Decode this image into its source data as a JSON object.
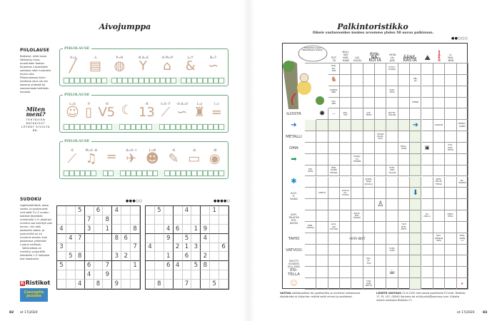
{
  "left_page": {
    "title": "Aivojumppa",
    "piilolause": {
      "heading": "PIILOLAUSE",
      "text": "Ratkaise, mikä lause kätkeytyy kuva-arvoitusten taakse. Kirjainten lukumäärät sanoissa näet ruuduista kuvien alla. Piilolauseessa kukin haettava sana voi siis koostua yhdestä tai useammasta tehtävän kuvasta.",
      "miten_meni": "Miten meni?",
      "solutions_note": "TEHTÄVIEN RATKAISUT LÖYDÄT SIVULTA 88."
    },
    "puzzles": [
      {
        "label": "PIILOLAUSE",
        "pictures": [
          {
            "icon": "whip-icon",
            "glyph": "╱",
            "hint": "V=J"
          },
          {
            "icon": "books-icon",
            "glyph": "▤",
            "hint": "-L"
          },
          {
            "icon": "basketball-icon",
            "glyph": "◍",
            "hint": "P=H"
          },
          {
            "icon": "slingshot-icon",
            "glyph": "Y",
            "hint": "-R A=E"
          },
          {
            "icon": "door-icon",
            "glyph": "⌂",
            "hint": "-O M=P"
          },
          {
            "icon": "ampersand-icon",
            "glyph": "&",
            "hint": "J=Y"
          },
          {
            "icon": "worms-icon",
            "glyph": "∽",
            "hint": "B=T"
          }
        ],
        "answer_groups": [
          8,
          12,
          8
        ]
      },
      {
        "label": "PIILOLAUSE",
        "pictures": [
          {
            "icon": "man-icon",
            "glyph": "☺",
            "hint": "L=S"
          },
          {
            "icon": "board-icon",
            "glyph": "▯",
            "hint": "-Y"
          },
          {
            "icon": "v5-icon",
            "glyph": "V5",
            "hint": "-O"
          },
          {
            "icon": "moon-icon",
            "glyph": "☾",
            "hint": ""
          },
          {
            "icon": "number-13-icon",
            "glyph": "13",
            "hint": "-K"
          },
          {
            "icon": "ruler-icon",
            "glyph": "⟋",
            "hint": "I=U -T"
          },
          {
            "icon": "worm-icon",
            "glyph": "∽",
            "hint": "-O A=U"
          },
          {
            "icon": "bucket-icon",
            "glyph": "♜",
            "hint": "L=J"
          },
          {
            "icon": "equals-icon",
            "glyph": "=",
            "hint": "(=)"
          }
        ],
        "answer_groups": [
          9,
          6,
          12
        ]
      },
      {
        "label": "PIILOLAUSE",
        "pictures": [
          {
            "icon": "knife-icon",
            "glyph": "⟋",
            "hint": "-E"
          },
          {
            "icon": "music-notes-icon",
            "glyph": "♫",
            "hint": "M=S -A"
          },
          {
            "icon": "equals-icon",
            "glyph": "=",
            "hint": ""
          },
          {
            "icon": "airplane-icon",
            "glyph": "✈",
            "hint": "A=O -I"
          },
          {
            "icon": "teddy-bear-icon",
            "glyph": "☻",
            "hint": "L=N"
          },
          {
            "icon": "pencil-icon",
            "glyph": "✎",
            "hint": "-K"
          },
          {
            "icon": "flag-icon",
            "glyph": "▭",
            "hint": "-A"
          },
          {
            "icon": "pot-icon",
            "glyph": "◉",
            "hint": "-N"
          }
        ],
        "answer_groups": [
          6,
          2,
          7,
          11
        ]
      }
    ],
    "sudoku": {
      "heading": "SUDOKU",
      "text": "Logiikkatehtävä, jossa vaaka- ja pystysuorat rivit sekä 3 x 3 ruudun laatikot täytetään numeroilla 1–9. Jokainen numero saa esiintyä vain kerran, niin että jokaisella vaaka- ja pystyrivillä on eri numerot samoin kuin jokaisessa yhdeksän ruudun neliössä.",
      "text2": "Vaikeustaso on merkitty ympyröillä asteikolla 1–5 helposta tosi haastaviin.",
      "puzzles": [
        {
          "difficulty": 3,
          "difficulty_label": "●●●○○",
          "rows": [
            "..5.6.4..",
            "...7.8...",
            "4..3.1..8",
            ".47...86.",
            "3.......7",
            ".58...32.",
            "5..6.7..1",
            "...4.9...",
            "..4.8.9.."
          ]
        },
        {
          "difficulty": 4,
          "difficulty_label": "●●●●○",
          "rows": [
            ".5..4..1.",
            ".........",
            "..46.19..",
            "..9.5.4..",
            "4..213..6",
            "..1.6.2..",
            "..64.58..",
            ".........",
            ".8..7..5."
          ]
        }
      ],
      "ristikot_logo": "Ristikot",
      "conceptis_logo": "Conceptis puzzles"
    },
    "footer": {
      "page": "82",
      "issue": "et 17|2020"
    }
  },
  "right_page": {
    "title": "Palkintoristikko",
    "subtitle": "Oikein vastanneiden kesken arvomme yhden 50 euron palkinnon.",
    "difficulty_label": "●●○○○",
    "difficulty": 2,
    "speech_bubble": "TÄMÄHÄN ALKAA PIKKUHILJAA SUJUA!",
    "crossword": {
      "header": [
        {
          "text": "",
          "cols": 3
        },
        {
          "text": "PUT-\nTA",
          "cols": 1
        },
        {
          "text": "NOU-\nSEE\nVAR-\nHAIN",
          "cols": 1
        },
        {
          "text": "LIK-\nKOON",
          "cols": 1
        },
        {
          "text": "RYN-\nNÄ-\nKÖITÄ",
          "cols": 2,
          "big": true
        },
        {
          "text": "HYVÄ\nLA-\nJIKE",
          "cols": 1
        },
        {
          "text": "ÄÄNE-\nKÄSTÄ",
          "cols": 2,
          "big": true
        },
        {
          "text": "icon:climber-icon",
          "cols": 1
        },
        {
          "text": "S\nA\nK\nO",
          "cols": 1,
          "red": true
        },
        {
          "text": "LI-\nMAI-\nNEN",
          "cols": 1
        }
      ],
      "rows": [
        {
          "label": "~",
          "cells": {
            "0": "~",
            "1": "~",
            "2": "RAN-\nNA-\nTON",
            "7": "PYSTY-\nSUORA"
          }
        },
        {
          "label": "~",
          "cells": {
            "0": "~",
            "1": "~",
            "2": "icon:gnome-figure-icon",
            "9": "VEL-\nJIÄ"
          }
        },
        {
          "label": "~",
          "cells": {
            "0": "~",
            "1": "~",
            "2": "OSBER-\nNER",
            "7": "PON-\nTEVA"
          }
        },
        {
          "label": "~",
          "cells": {
            "0": "~",
            "1": "~",
            "2": "HAI-\nSEE",
            "9": "HENRI"
          }
        },
        {
          "label": "ILOISTA",
          "cells": {
            "0": "~",
            "1": "icon:spiky-ball-icon",
            "2": "| |",
            "3": "ARA-\nTAT",
            "5": "AAT-\nTEITA",
            "7": "NÄYTE-\nPILLON"
          }
        },
        {
          "label": "icon:blue-arrow-circle-icon",
          "cells": {
            "9": "icon:blue-arrow-circle-icon",
            "11": "DANON",
            "13": "REHEL-\nLINEN"
          }
        },
        {
          "label": "METALLI",
          "cells": {
            "6": "TÄHKÄ\nKULKI-\nKIVA"
          }
        },
        {
          "label": "OMA",
          "cells": {
            "8": "EDUL-\nLISIN",
            "10": "icon:dot-box-icon",
            "12": "PYÖ-\nRÄH-\nTELTÄ"
          }
        },
        {
          "label": "icon:green-arrow-icon",
          "cells": {
            "4": "SUOJA-\nYH-\nTEINEN"
          }
        },
        {
          "label": "~",
          "cells": {
            "0": "KIE-\nKOIN",
            "2": "HEN-\nKIVEN\nARTEJA",
            "7": "TATE-\nTAIN\nVIOLIN"
          }
        },
        {
          "label": "icon:blue-splash-icon",
          "cells": {
            "5": "KUNKI-\nNOJA\nKOULLA",
            "11": "KIPPI-\nMÄLPI-\nTESSÄ",
            "13": "PIL-\nVARIDA"
          }
        },
        {
          "label": "KULT-\nTI-\nRAINA",
          "cells": {
            "1": "KIRVITI",
            "3": "KUTUA\nAU-\nTOSSA",
            "9": "icon:blue-down-arrow-icon"
          }
        },
        {
          "label": "~",
          "cells": {
            "6": "icon:climbing-man-icon"
          }
        },
        {
          "label": "KAPI-\nTALISTIN\nPÖY-\nDÄSSÄ",
          "cells": {
            "4": "RAHA-\nPÖY-\nDÄSSÄ",
            "10": "TO-\nDELLA",
            "12": "HIRVI-\nPEILI"
          }
        },
        {
          "label": "~",
          "cells": {
            "0": "REN-\nKAISSA",
            "2": "ALOI-\nSIN\nTAYVGE",
            "8": "YLLE\nPÖM-\nMITTI"
          }
        },
        {
          "label": "TAPIO",
          "cells": {
            "4": "•IHTA WIST",
            "11": "NAT-\nLEENAN\nWES",
            "13": "TURI-\nAKEN\n+T"
          }
        },
        {
          "label": "VATVOO",
          "cells": {
            "7": "TUPA-\nSURI"
          }
        },
        {
          "label": "MUOTTI\nKOSKIEN\nKULLARISI",
          "cells": {
            "5": "KUL-\nJE-\nTIVA"
          }
        },
        {
          "label": "ESI-\nTELLA",
          "cells": {
            "7": "icon:cup-icon"
          }
        },
        {
          "label": "icon:sleeping-baby-icon",
          "cells": {
            "5": "TUR-\nVAN-\nNETTA",
            "13": "icon:red-dot-icon"
          }
        }
      ],
      "highlight": [
        {
          "row": 5,
          "cols": [
            0,
            9
          ]
        },
        {
          "col": 9,
          "rows": [
            5,
            19
          ]
        }
      ],
      "highlight_color": "#eef5e6"
    },
    "answer_instructions": {
      "vastaa_label": "VASTAA",
      "vastaa_text": " sähköpostitse tai postikortilla ja merkitse ratkaisussa käyttämäsi ei-kirjainten määrä sekä nimesi ja osoitteesi.",
      "laheta_label": "LÄHETÄ VASTAUS",
      "laheta_text": " 23.9.2020 mennessä osoitteella ET-lehti, Ristikko 17, PL 107, 00040 Sanoma tai et.kilpailut@sanoma.com. Kirjoita viestin otsikoksi Ristikko 17."
    },
    "footer": {
      "page": "83",
      "issue": "et 17|2020"
    }
  },
  "colors": {
    "puzzle_green": "#6aa57f",
    "highlight": "#eef5e6",
    "blue_icon": "#1f6fc4",
    "red_logo": "#d33333"
  }
}
